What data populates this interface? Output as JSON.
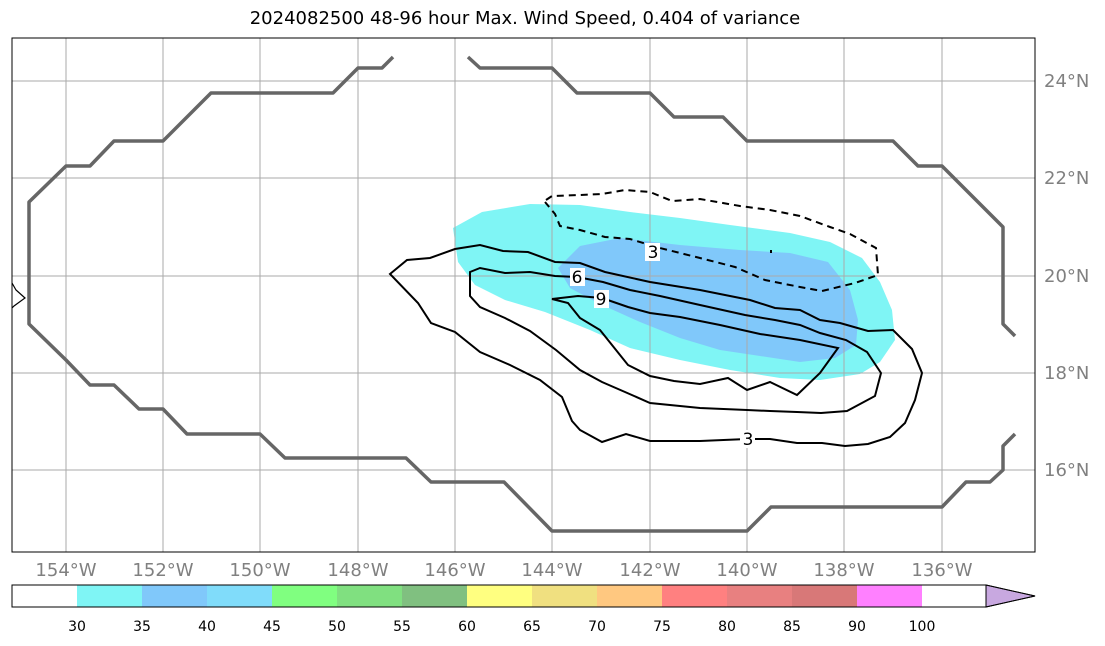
{
  "title": "2024082500 48-96 hour Max. Wind Speed, 0.404 of variance",
  "lat_labels": [
    "24°N",
    "22°N",
    "20°N",
    "18°N",
    "16°N"
  ],
  "lon_labels": [
    "154°W",
    "152°W",
    "150°W",
    "148°W",
    "146°W",
    "144°W",
    "142°W",
    "140°W",
    "138°W",
    "136°W"
  ],
  "colorbar": {
    "ticks": [
      "30",
      "35",
      "40",
      "45",
      "50",
      "55",
      "60",
      "65",
      "70",
      "75",
      "80",
      "85",
      "90",
      "100"
    ],
    "colors": [
      "#ffffff",
      "#7ff5f5",
      "#80c8fa",
      "#80dcfa",
      "#80ff80",
      "#80e080",
      "#80c080",
      "#ffff80",
      "#f0e080",
      "#ffc880",
      "#ff8080",
      "#e88080",
      "#d87878",
      "#ff80ff",
      "#c8a8e0"
    ],
    "extend": "max"
  },
  "contour_labels": [
    {
      "text": "3",
      "kind": "dashed"
    },
    {
      "text": "6",
      "kind": "solid"
    },
    {
      "text": "9",
      "kind": "solid"
    },
    {
      "text": "3",
      "kind": "solid"
    }
  ],
  "map_style": {
    "grid_color": "#aaaaaa",
    "boundary_color": "#666666",
    "fill_30": "#7ff5f5",
    "fill_35": "#80c8fa"
  }
}
